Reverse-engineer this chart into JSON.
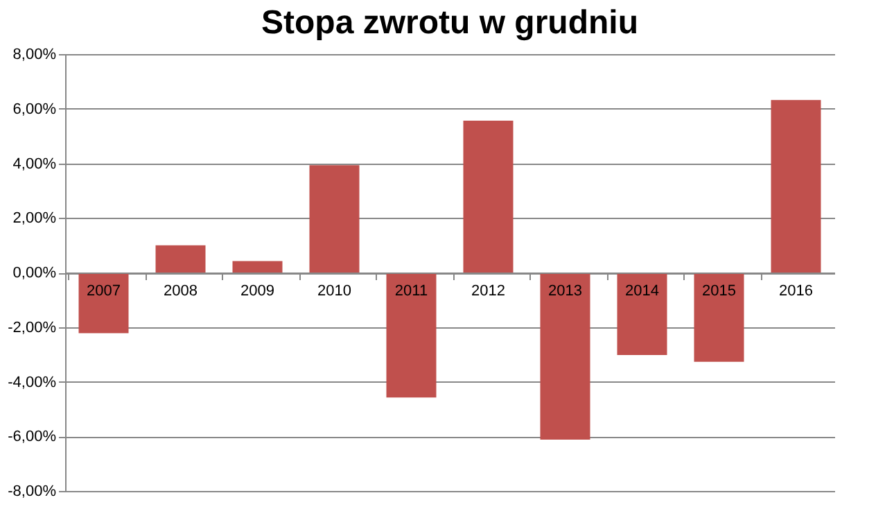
{
  "chart_data": {
    "type": "bar",
    "title": "Stopa zwrotu w grudniu",
    "categories": [
      "2007",
      "2008",
      "2009",
      "2010",
      "2011",
      "2012",
      "2013",
      "2014",
      "2015",
      "2016"
    ],
    "values": [
      -2.22,
      1.0,
      0.42,
      3.93,
      -4.58,
      5.56,
      -6.12,
      -3.02,
      -3.27,
      6.32
    ],
    "color": "#c0504d",
    "ylim": [
      -8,
      8
    ],
    "yticks": [
      {
        "value": -8,
        "label": "-8,00%"
      },
      {
        "value": -6,
        "label": "-6,00%"
      },
      {
        "value": -4,
        "label": "-4,00%"
      },
      {
        "value": -2,
        "label": "-2,00%"
      },
      {
        "value": 0,
        "label": "0,00%"
      },
      {
        "value": 2,
        "label": "2,00%"
      },
      {
        "value": 4,
        "label": "4,00%"
      },
      {
        "value": 6,
        "label": "6,00%"
      },
      {
        "value": 8,
        "label": "8,00%"
      }
    ],
    "grid": "y"
  }
}
